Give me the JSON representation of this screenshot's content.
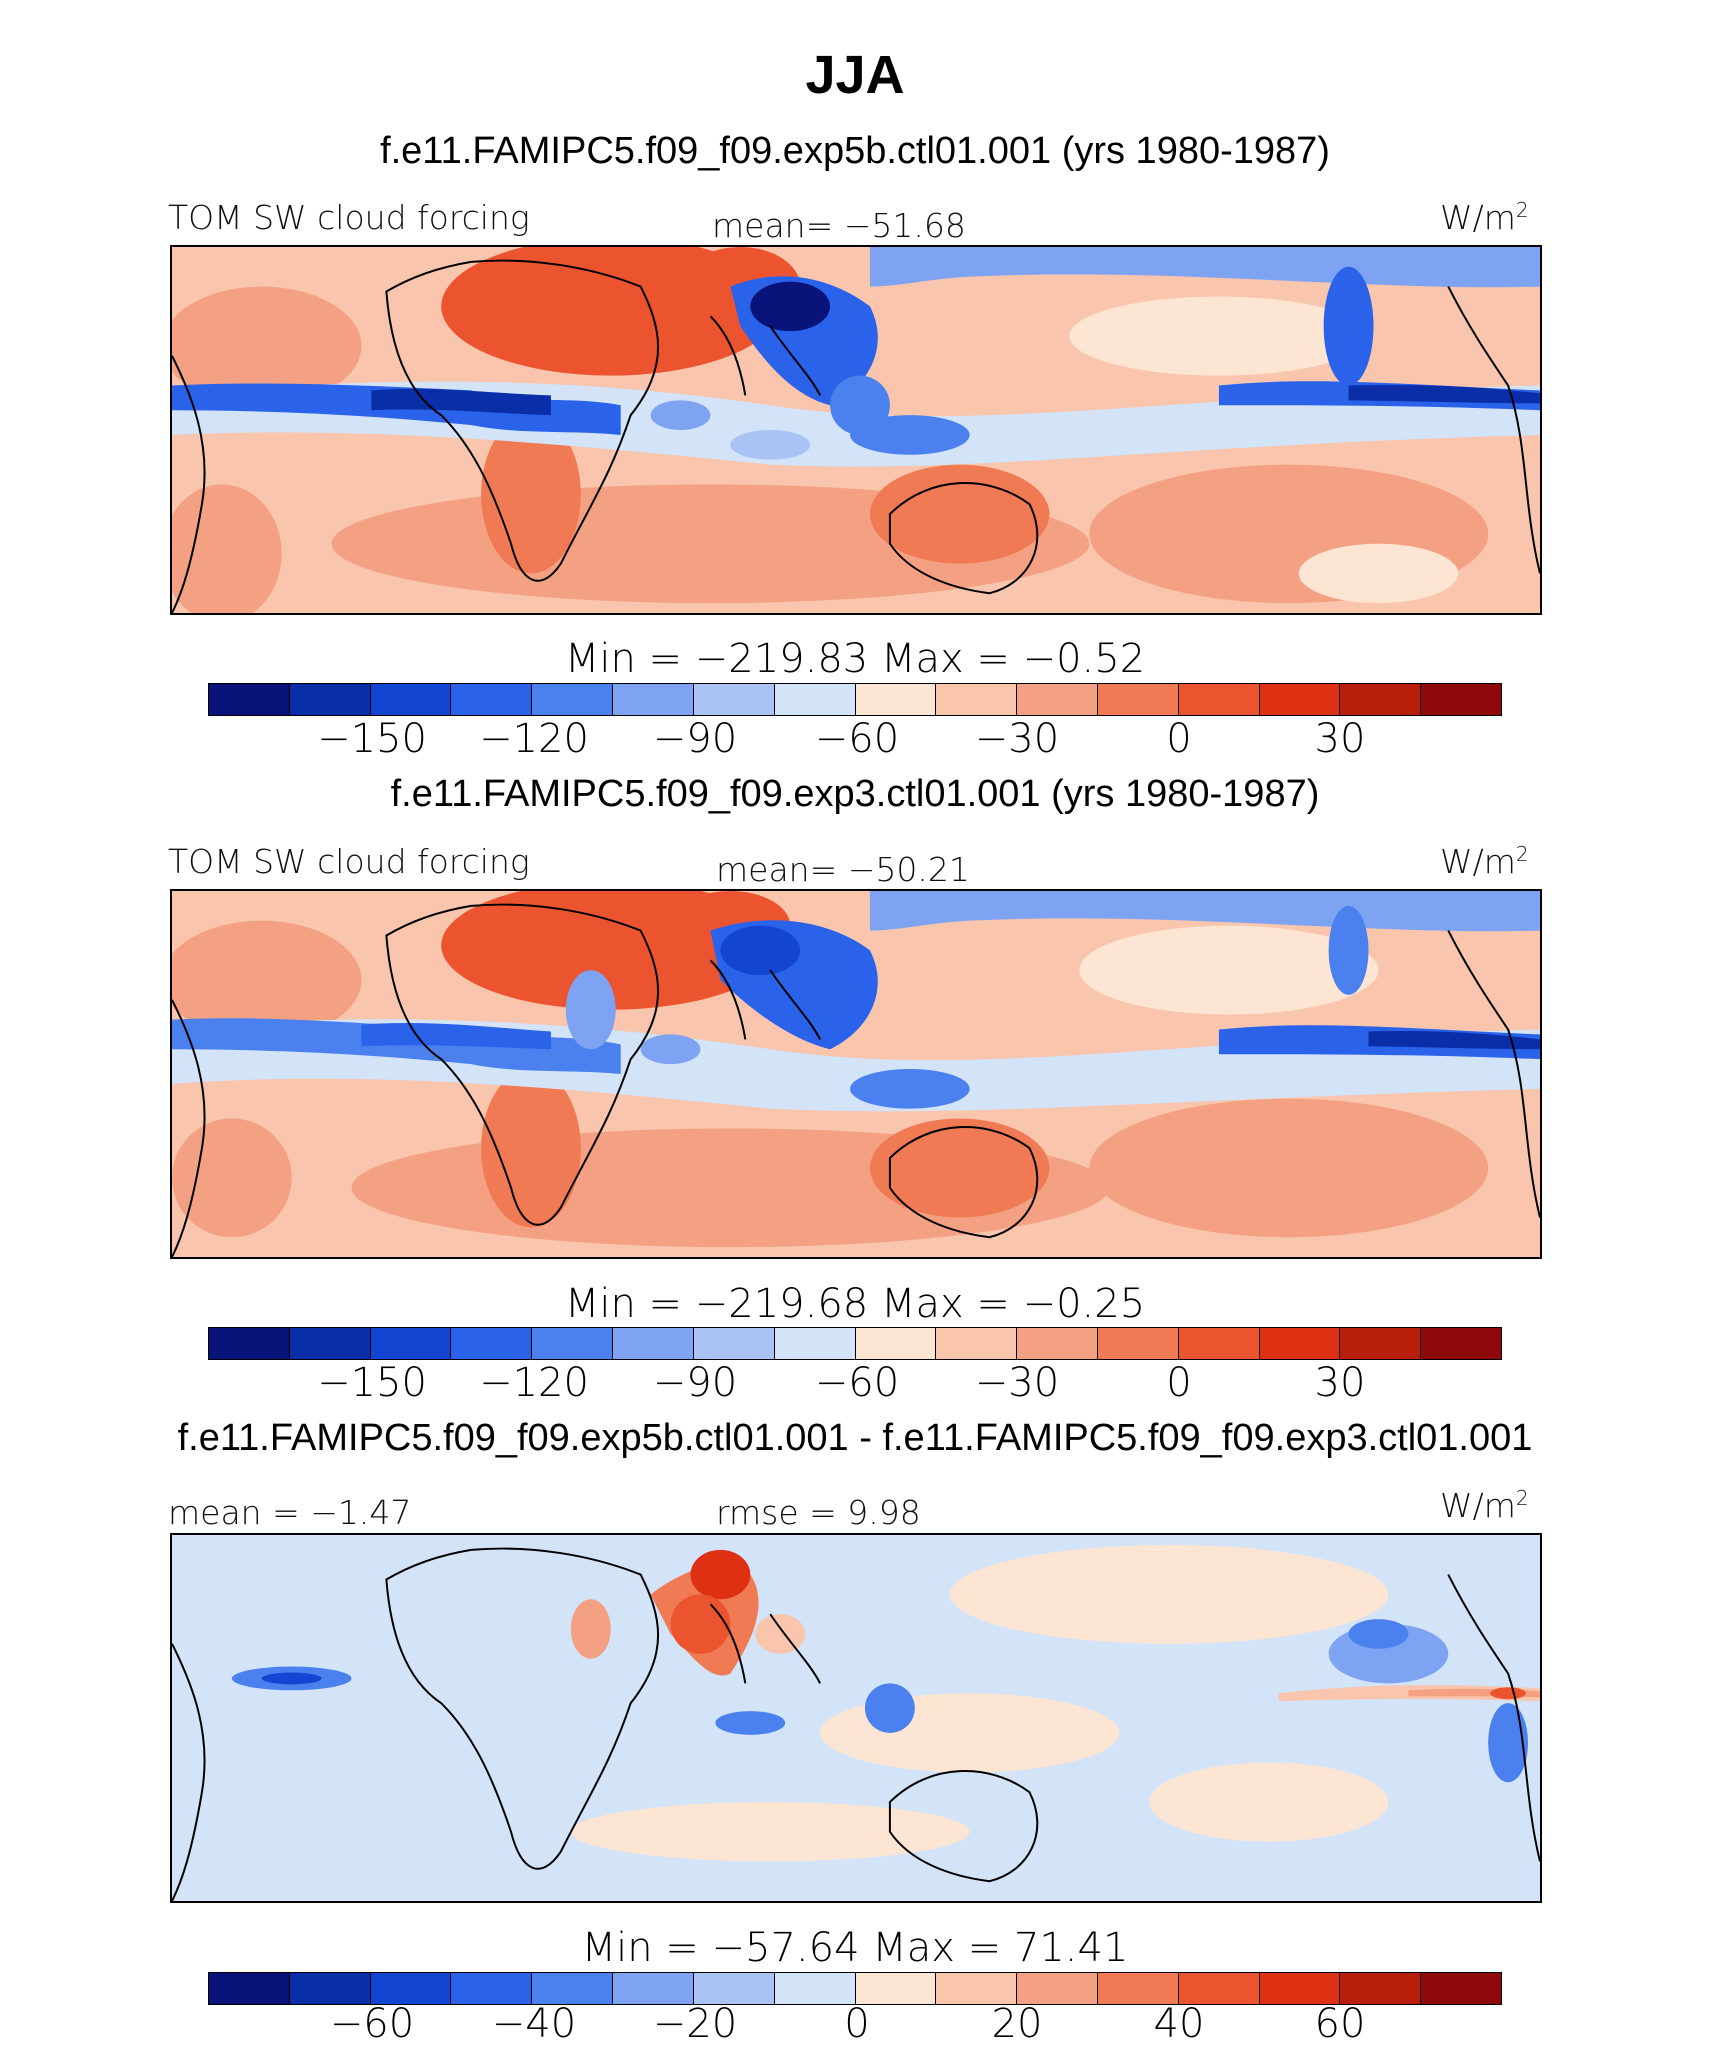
{
  "title": "JJA",
  "colors": {
    "palette": [
      "#08147a",
      "#0a2ea8",
      "#1444d2",
      "#2a62ea",
      "#4b80ef",
      "#7da3f2",
      "#a8c3f4",
      "#d3e3f8",
      "#fde5d4",
      "#f9c5ad",
      "#f3a182",
      "#f07a53",
      "#ec5430",
      "#de3114",
      "#b81e0c",
      "#8e0909"
    ],
    "coast": "#000000"
  },
  "panels": [
    {
      "id": "exp5b",
      "title": "f.e11.FAMIPC5.f09_f09.exp5b.ctl01.001 (yrs 1980-1987)",
      "left_label": "TOM SW cloud forcing",
      "center_label": "mean= −51.68",
      "units_label": "W/m",
      "units_exp": "2",
      "stats": "Min = −219.83 Max = −0.52",
      "ticks": [
        "−150",
        "−120",
        "−90",
        "−60",
        "−30",
        "0",
        "30"
      ]
    },
    {
      "id": "exp3",
      "title": "f.e11.FAMIPC5.f09_f09.exp3.ctl01.001 (yrs 1980-1987)",
      "left_label": "TOM SW cloud forcing",
      "center_label": "mean= −50.21",
      "units_label": "W/m",
      "units_exp": "2",
      "stats": "Min = −219.68 Max = −0.25",
      "ticks": [
        "−150",
        "−120",
        "−90",
        "−60",
        "−30",
        "0",
        "30"
      ]
    },
    {
      "id": "diff",
      "title": "f.e11.FAMIPC5.f09_f09.exp5b.ctl01.001 - f.e11.FAMIPC5.f09_f09.exp3.ctl01.001",
      "left_label": "mean = −1.47",
      "center_label": "rmse = 9.98",
      "units_label": "W/m",
      "units_exp": "2",
      "stats": "Min = −57.64 Max = 71.41",
      "ticks": [
        "−60",
        "−40",
        "−20",
        "0",
        "20",
        "40",
        "60"
      ]
    }
  ]
}
